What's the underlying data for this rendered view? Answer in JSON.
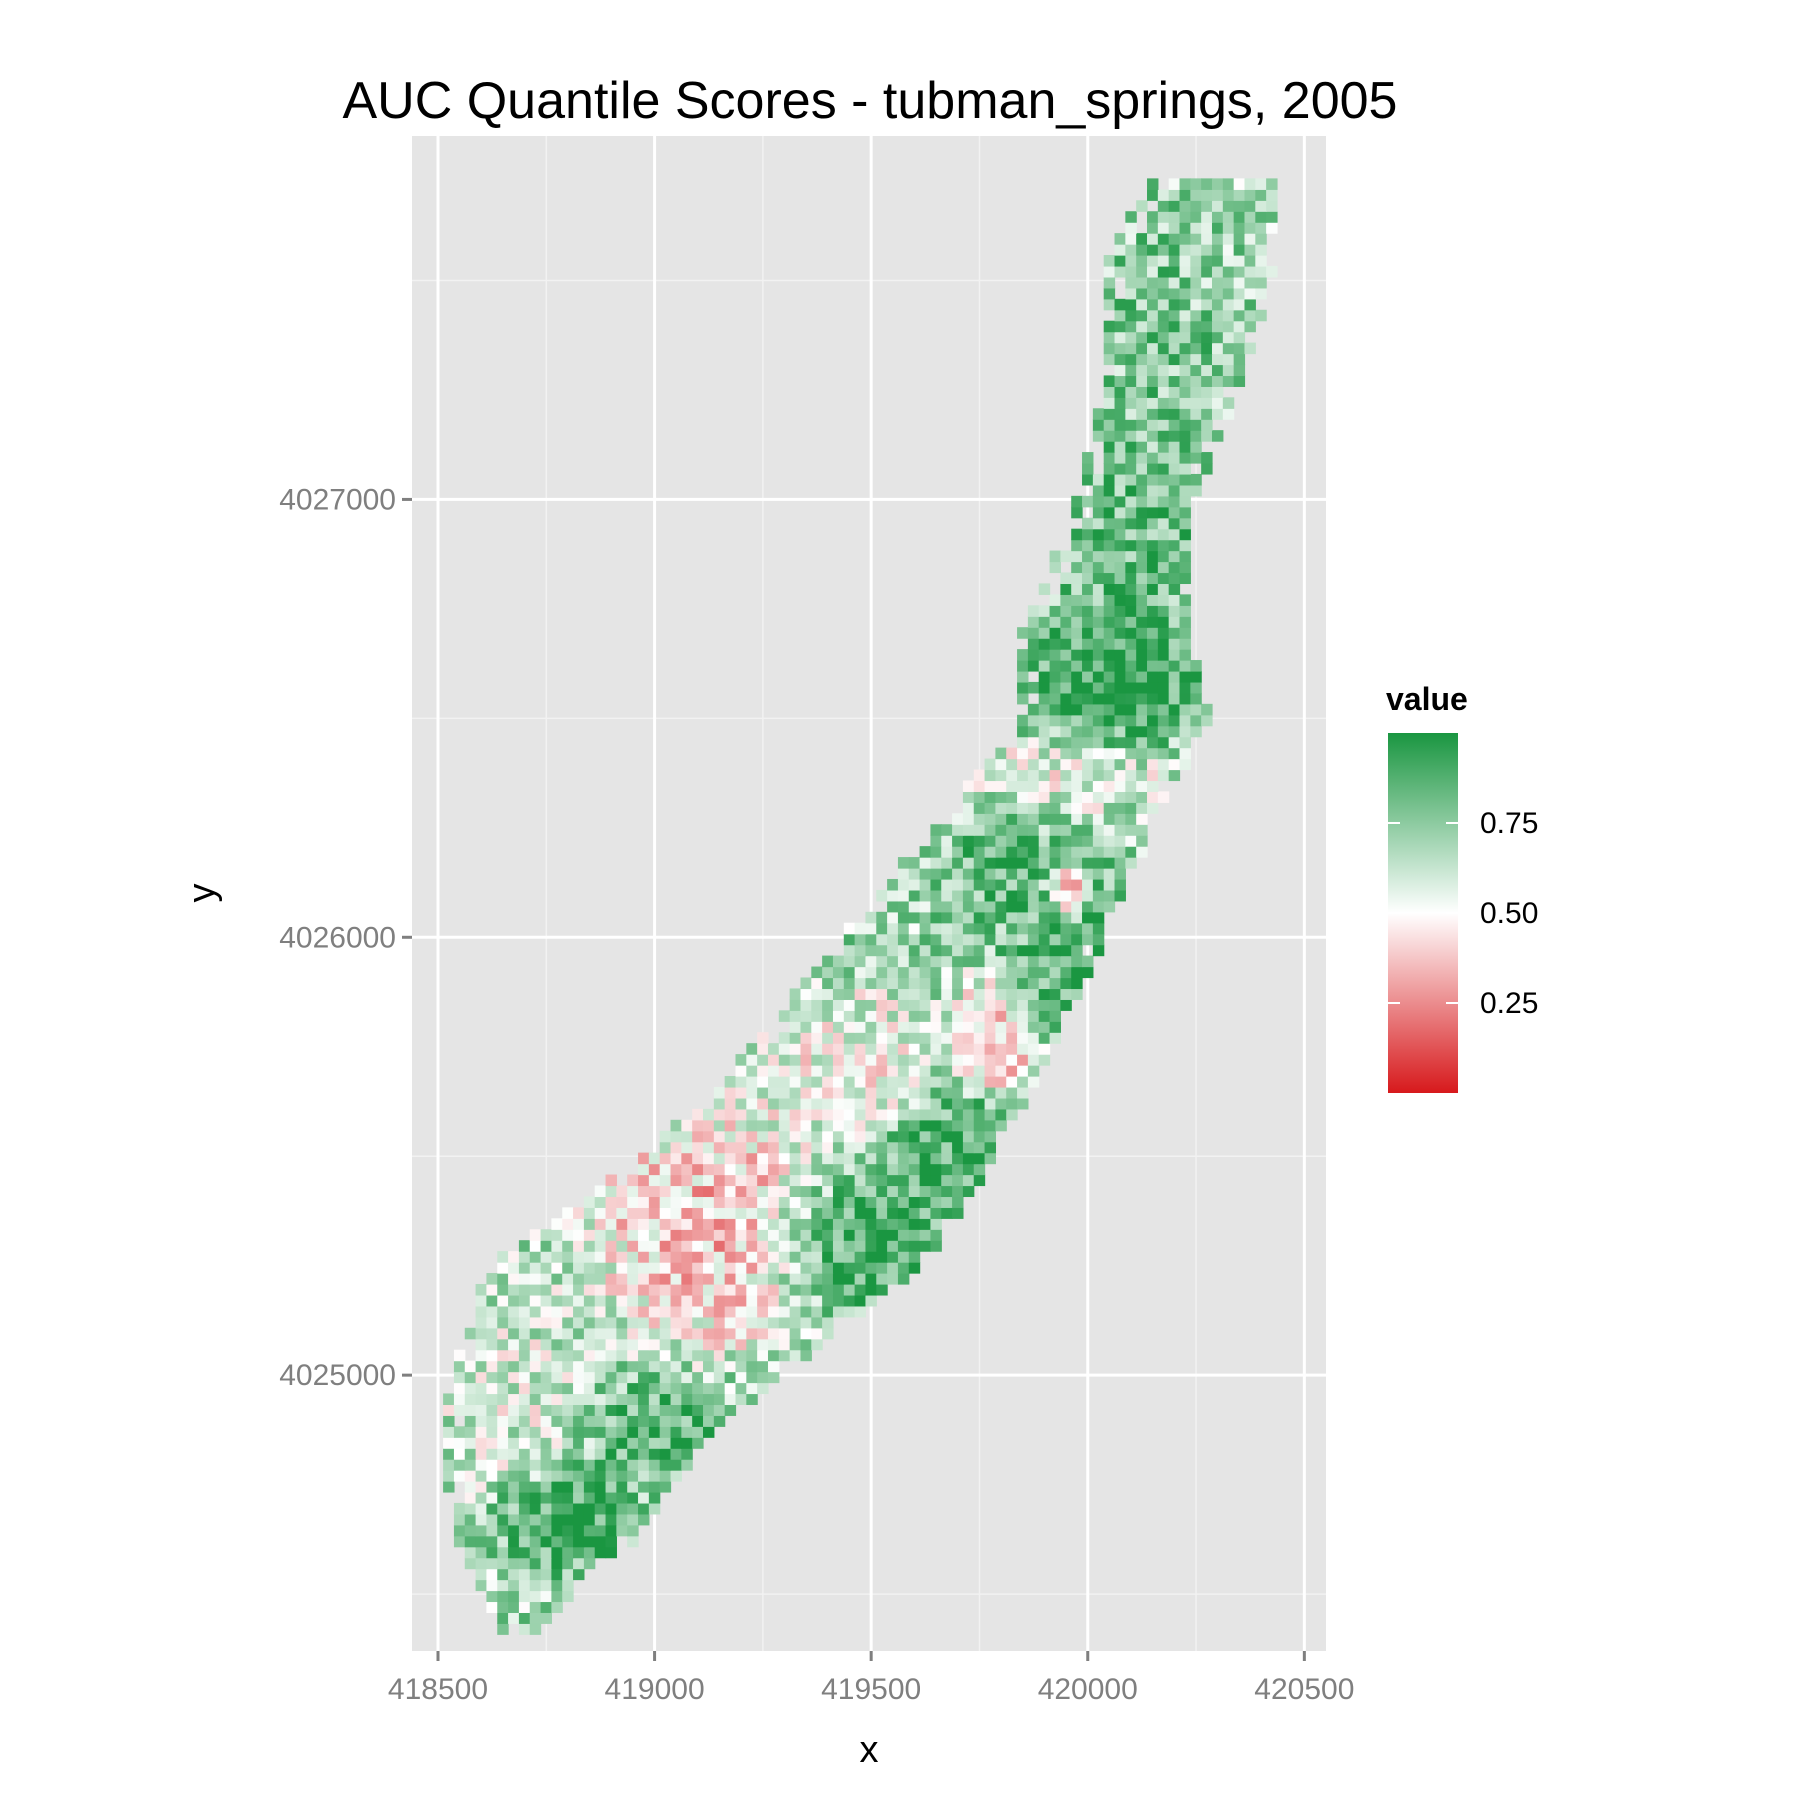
{
  "chart_data": {
    "type": "heatmap",
    "title": "AUC Quantile Scores - tubman_springs, 2005",
    "xlabel": "x",
    "ylabel": "y",
    "xlim": [
      418440,
      420550
    ],
    "ylim": [
      4024370,
      4027830
    ],
    "x_ticks": [
      418500,
      419000,
      419500,
      420000,
      420500
    ],
    "x_tick_labels": [
      "418500",
      "419000",
      "419500",
      "420000",
      "420500"
    ],
    "y_ticks": [
      4025000,
      4026000,
      4027000
    ],
    "y_tick_labels": [
      "4025000",
      "4026000",
      "4027000"
    ],
    "grid": true,
    "panel_background": "#e5e5e5",
    "cell_size": 25,
    "color_scale": {
      "low": "#d7191c",
      "mid": "#ffffff",
      "high": "#1a9641",
      "midpoint": 0.5,
      "limits": [
        0,
        1
      ]
    },
    "legend": {
      "title": "value",
      "position": "right",
      "labels": [
        "0.75",
        "0.50",
        "0.25"
      ],
      "values": [
        0.75,
        0.5,
        0.25
      ]
    },
    "spine": [
      {
        "y": 4024420,
        "xmin": 418650,
        "xmax": 418740
      },
      {
        "y": 4024620,
        "xmin": 418560,
        "xmax": 418950
      },
      {
        "y": 4024850,
        "xmin": 418510,
        "xmax": 419120
      },
      {
        "y": 4025050,
        "xmin": 418560,
        "xmax": 419360
      },
      {
        "y": 4025250,
        "xmin": 418620,
        "xmax": 419620
      },
      {
        "y": 4025420,
        "xmin": 418880,
        "xmax": 419740
      },
      {
        "y": 4025650,
        "xmin": 419150,
        "xmax": 419870
      },
      {
        "y": 4025950,
        "xmin": 419400,
        "xmax": 420020
      },
      {
        "y": 4026250,
        "xmin": 419650,
        "xmax": 420150
      },
      {
        "y": 4026500,
        "xmin": 419860,
        "xmax": 420280
      },
      {
        "y": 4026700,
        "xmin": 419860,
        "xmax": 420230
      },
      {
        "y": 4026950,
        "xmin": 419970,
        "xmax": 420230
      },
      {
        "y": 4027250,
        "xmin": 420040,
        "xmax": 420350
      },
      {
        "y": 4027550,
        "xmin": 420060,
        "xmax": 420440
      },
      {
        "y": 4027740,
        "xmin": 420160,
        "xmax": 420430
      }
    ],
    "regions": [
      {
        "note": "west lobe mixed",
        "cx": 418680,
        "cy": 4024950,
        "rx": 170,
        "ry": 230,
        "v": 0.58
      },
      {
        "note": "southwest green blob",
        "cx": 418790,
        "cy": 4024680,
        "rx": 140,
        "ry": 100,
        "v": 0.97
      },
      {
        "note": "south edge green",
        "cx": 419000,
        "cy": 4024880,
        "rx": 160,
        "ry": 90,
        "v": 0.9
      },
      {
        "note": "central red area",
        "cx": 419150,
        "cy": 4025330,
        "rx": 240,
        "ry": 220,
        "v": 0.32
      },
      {
        "note": "green band center",
        "cx": 419430,
        "cy": 4025300,
        "rx": 190,
        "ry": 140,
        "v": 0.97
      },
      {
        "note": "green band upper",
        "cx": 419680,
        "cy": 4025500,
        "rx": 150,
        "ry": 160,
        "v": 0.93
      },
      {
        "note": "mid mixed",
        "cx": 419450,
        "cy": 4025700,
        "rx": 200,
        "ry": 150,
        "v": 0.48
      },
      {
        "note": "red pocket",
        "cx": 419780,
        "cy": 4025760,
        "rx": 90,
        "ry": 110,
        "v": 0.28
      },
      {
        "note": "right edge green",
        "cx": 419960,
        "cy": 4025950,
        "rx": 120,
        "ry": 200,
        "v": 0.9
      },
      {
        "note": "green cluster",
        "cx": 419800,
        "cy": 4026150,
        "rx": 120,
        "ry": 120,
        "v": 0.85
      },
      {
        "note": "dark red spot",
        "cx": 419950,
        "cy": 4026100,
        "rx": 40,
        "ry": 50,
        "v": 0.05
      },
      {
        "note": "pink band",
        "cx": 419960,
        "cy": 4026370,
        "rx": 200,
        "ry": 70,
        "v": 0.52
      },
      {
        "note": "large green blob",
        "cx": 420070,
        "cy": 4026600,
        "rx": 170,
        "ry": 140,
        "v": 0.99
      },
      {
        "note": "north green",
        "cx": 420100,
        "cy": 4026950,
        "rx": 150,
        "ry": 200,
        "v": 0.85
      },
      {
        "note": "far north mixed",
        "cx": 420150,
        "cy": 4027350,
        "rx": 180,
        "ry": 250,
        "v": 0.78
      }
    ]
  }
}
